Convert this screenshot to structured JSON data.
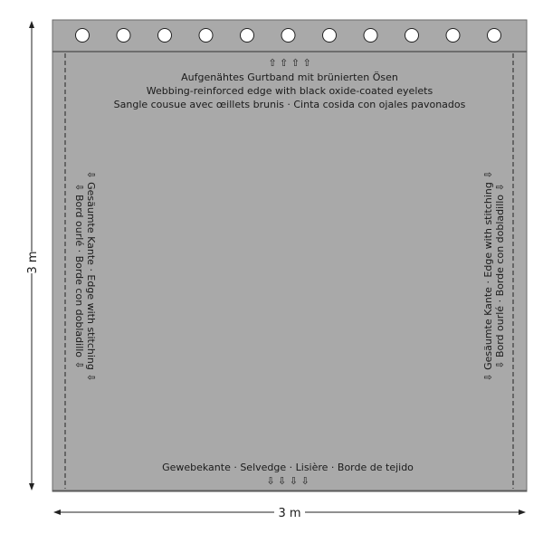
{
  "colors": {
    "panel": "#a9a9a9",
    "band": "#a4a4a4",
    "edge": "#5a5a5a",
    "eyelet": "#ffffff"
  },
  "eyelet_count": 11,
  "top": {
    "arrows": "⇧ ⇧ ⇧ ⇧",
    "line1": "Aufgenähtes Gurtband mit brünierten Ösen",
    "line2": "Webbing-reinforced edge with black oxide-coated eyelets",
    "line3": "Sangle cousue avec œillets brunis  ·  Cinta cosida con ojales pavonados"
  },
  "left": {
    "line1": "⇩  Gesäumte Kante  ·  Edge with stitching  ⇩",
    "line2": "⇩  Bord ourlé  ·  Borde con dobladillo  ⇩"
  },
  "right": {
    "line1": "⇩  Gesäumte Kante  ·  Edge with stitching  ⇩",
    "line2": "⇩  Bord ourlé  ·  Borde con dobladillo  ⇩"
  },
  "bottom": {
    "line1": "Gewebekante  ·  Selvedge  ·  Lisière  ·  Borde de tejido",
    "arrows": "⇩   ⇩   ⇩   ⇩"
  },
  "dimensions": {
    "height": "3 m",
    "width": "3 m"
  }
}
